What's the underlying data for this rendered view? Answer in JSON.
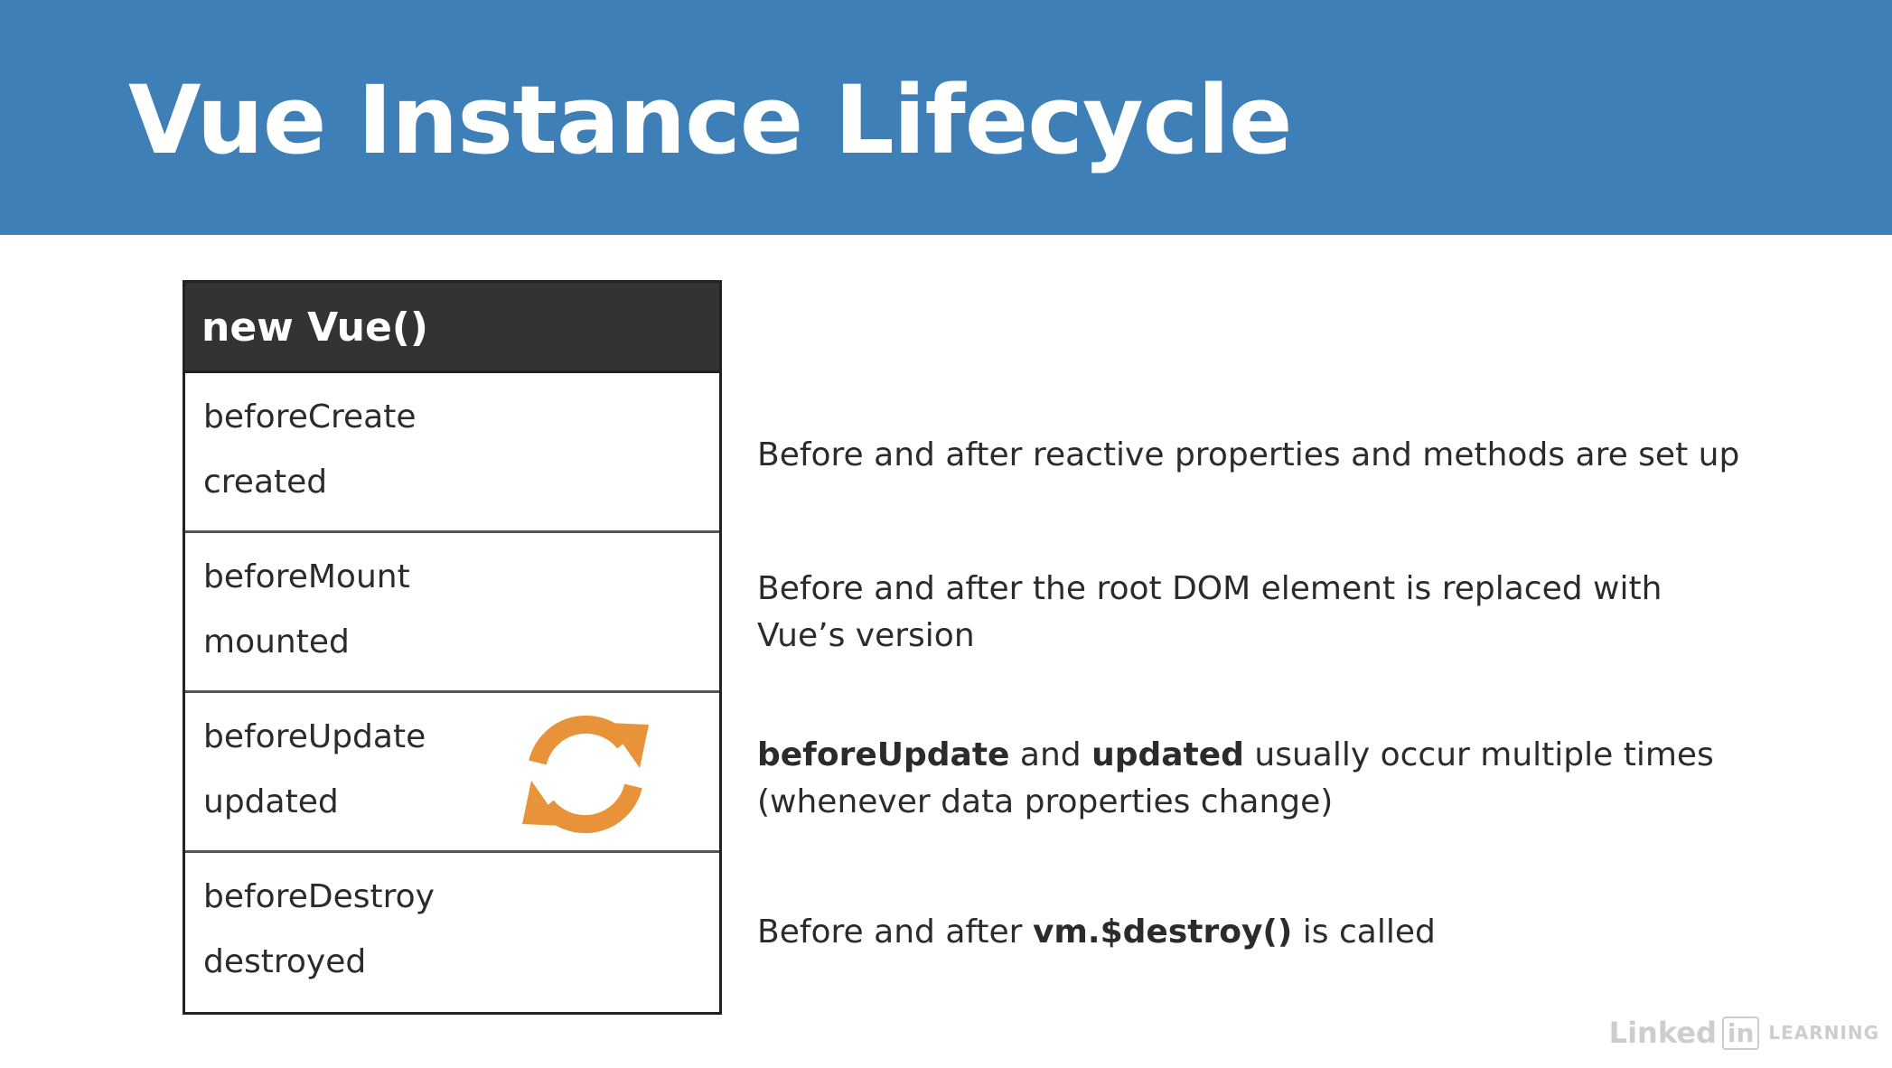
{
  "title": "Vue Instance Lifecycle",
  "table": {
    "header": "new Vue()",
    "rows": [
      {
        "hook_before": "beforeCreate",
        "hook_after": "created"
      },
      {
        "hook_before": "beforeMount",
        "hook_after": "mounted"
      },
      {
        "hook_before": "beforeUpdate",
        "hook_after": "updated"
      },
      {
        "hook_before": "beforeDestroy",
        "hook_after": "destroyed"
      }
    ]
  },
  "descriptions": {
    "create": "Before and after reactive properties and methods are set up",
    "mount_line1": "Before and after the root DOM element is replaced with",
    "mount_line2": "Vue’s version",
    "update_bold1": "beforeUpdate",
    "update_text1": " and ",
    "update_bold2": "updated",
    "update_text2": " usually occur multiple times",
    "update_line2": "(whenever data properties change)",
    "destroy_text1": "Before and after ",
    "destroy_bold": "vm.$destroy()",
    "destroy_text2": " is called"
  },
  "icons": {
    "cycle": "refresh-cycle-icon"
  },
  "colors": {
    "header_bg": "#3f7fb7",
    "table_header_bg": "#333333",
    "cycle_icon": "#e8923a"
  },
  "watermark": {
    "brand": "Linked",
    "brand_in": "in",
    "suffix": "LEARNING"
  }
}
